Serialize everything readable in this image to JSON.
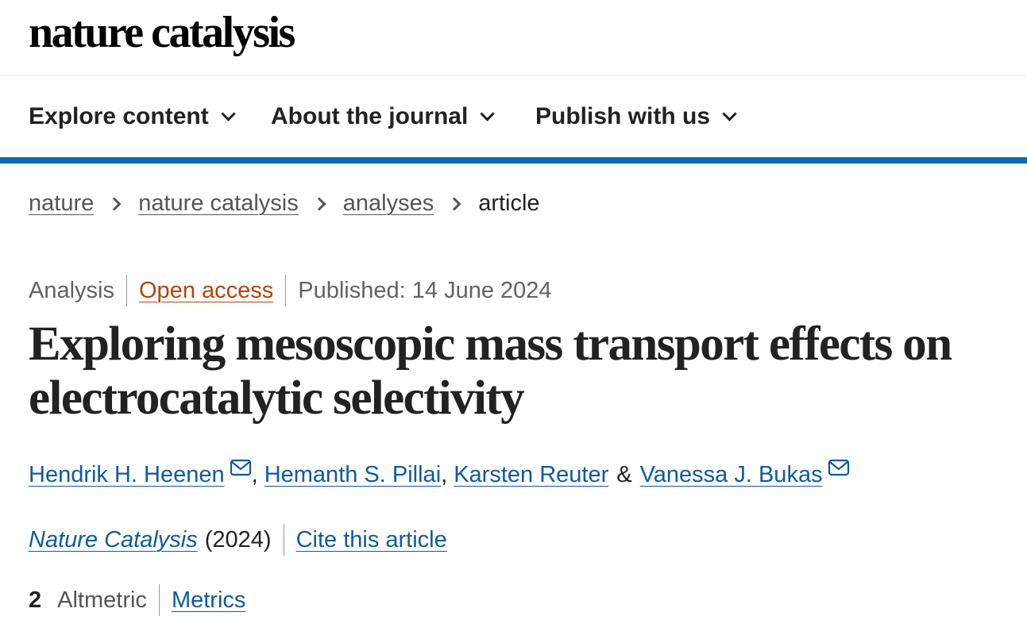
{
  "header": {
    "brand": "nature catalysis"
  },
  "nav": {
    "items": [
      {
        "label": "Explore content"
      },
      {
        "label": "About the journal"
      },
      {
        "label": "Publish with us"
      }
    ]
  },
  "breadcrumb": {
    "items": [
      "nature",
      "nature catalysis",
      "analyses"
    ],
    "current": "article"
  },
  "article": {
    "type": "Analysis",
    "access": "Open access",
    "published": "Published: 14 June 2024",
    "title": "Exploring mesoscopic mass transport effects on electrocatalytic selectivity",
    "authors": [
      {
        "name": "Hendrik H. Heenen",
        "mail": true
      },
      {
        "name": "Hemanth S. Pillai",
        "mail": false
      },
      {
        "name": "Karsten Reuter",
        "mail": false
      },
      {
        "name": "Vanessa J. Bukas",
        "mail": true
      }
    ],
    "separators": [
      ",",
      ",",
      "&"
    ],
    "journal": "Nature Catalysis",
    "year": "(2024)",
    "cite": "Cite this article",
    "altmetric_count": "2",
    "altmetric_label": "Altmetric",
    "metrics": "Metrics"
  },
  "colors": {
    "nav_border": "#0f6bb3",
    "link": "#0f5aa0",
    "open_access": "#b8430b"
  }
}
